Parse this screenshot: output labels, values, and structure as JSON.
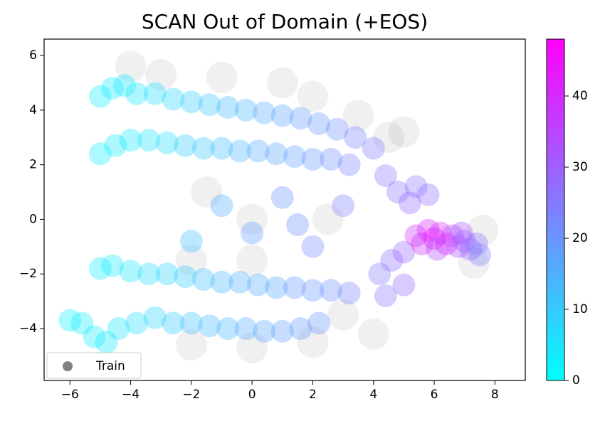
{
  "chart_data": {
    "type": "scatter",
    "title": "SCAN Out of Domain (+EOS)",
    "xlim": [
      -6.85,
      9
    ],
    "ylim": [
      -5.9,
      6.6
    ],
    "xticks": [
      {
        "value": -6,
        "label": "−6"
      },
      {
        "value": -4,
        "label": "−4"
      },
      {
        "value": -2,
        "label": "−2"
      },
      0,
      2,
      4,
      6,
      8
    ],
    "yticks": [
      {
        "value": -4,
        "label": "−4"
      },
      {
        "value": -2,
        "label": "−2"
      },
      0,
      2,
      4,
      6
    ],
    "legend": "lower left",
    "series": [
      {
        "name": "Train",
        "color": "#808080",
        "x": [
          -3,
          -1,
          1,
          2,
          3.5,
          4.5,
          0,
          -1.5,
          2.5,
          -2,
          0,
          3,
          0,
          -2,
          2,
          4,
          7.6,
          7.3,
          5,
          -4
        ],
        "y": [
          5.3,
          5.2,
          5,
          4.5,
          3.8,
          3,
          0,
          1,
          0,
          -1.5,
          -1.5,
          -3.5,
          -4.7,
          -4.6,
          -4.5,
          -4.2,
          -0.4,
          -1.6,
          3.2,
          5.6
        ]
      }
    ],
    "colored": {
      "colormap": "cool",
      "clim": [
        0,
        48
      ],
      "cticks": [
        0,
        10,
        20,
        30,
        40
      ],
      "x": [
        -5,
        -4.6,
        -4.2,
        -3.8,
        -3.2,
        -2.6,
        -2,
        -1.4,
        -0.8,
        -0.2,
        0.4,
        1,
        1.6,
        2.2,
        2.8,
        3.4,
        4,
        -5,
        -4.5,
        -4,
        -3.4,
        -2.8,
        -2.2,
        -1.6,
        -1,
        -0.4,
        0.2,
        0.8,
        1.4,
        2,
        2.6,
        3.2,
        4.4,
        4.8,
        5.2,
        5.4,
        5.8,
        -5,
        -4.6,
        -4,
        -3.4,
        -2.8,
        -2.2,
        -1.6,
        -1,
        -0.4,
        0.2,
        0.8,
        1.4,
        2,
        2.6,
        3.2,
        4.2,
        4.6,
        5,
        4.4,
        5,
        -6,
        -5.6,
        -5.2,
        -4.8,
        -4.4,
        -3.8,
        -3.2,
        -2.6,
        -2,
        -1.4,
        -0.8,
        -0.2,
        0.4,
        1,
        1.6,
        2.2,
        5.4,
        5.8,
        6,
        6.2,
        6.4,
        6.6,
        6.8,
        7,
        7.2,
        7.4,
        5.6,
        6.1,
        6.9,
        7.5,
        -1,
        0,
        1,
        2,
        -2,
        1.5,
        3
      ],
      "y": [
        4.5,
        4.8,
        4.9,
        4.6,
        4.6,
        4.4,
        4.3,
        4.2,
        4.1,
        4.0,
        3.9,
        3.8,
        3.7,
        3.5,
        3.3,
        3.0,
        2.6,
        2.4,
        2.7,
        2.9,
        2.9,
        2.8,
        2.7,
        2.6,
        2.6,
        2.5,
        2.5,
        2.4,
        2.3,
        2.2,
        2.2,
        2.0,
        1.6,
        1.0,
        0.6,
        1.2,
        0.9,
        -1.8,
        -1.7,
        -1.9,
        -2.0,
        -2.0,
        -2.1,
        -2.2,
        -2.3,
        -2.3,
        -2.4,
        -2.5,
        -2.5,
        -2.6,
        -2.6,
        -2.7,
        -2.0,
        -1.5,
        -1.2,
        -2.8,
        -2.4,
        -3.7,
        -3.8,
        -4.3,
        -4.5,
        -4.0,
        -3.8,
        -3.6,
        -3.8,
        -3.8,
        -3.9,
        -4.0,
        -4.0,
        -4.1,
        -4.1,
        -4.0,
        -3.8,
        -0.6,
        -0.4,
        -0.7,
        -0.5,
        -0.9,
        -0.6,
        -1.0,
        -0.8,
        -1.1,
        -0.9,
        -0.9,
        -1.1,
        -0.5,
        -1.3,
        0.5,
        -0.5,
        0.8,
        -1,
        -0.8,
        -0.2,
        0.5
      ],
      "c": [
        3,
        3,
        4,
        5,
        6,
        8,
        10,
        11,
        13,
        14,
        16,
        17,
        18,
        19,
        21,
        23,
        25,
        3,
        4,
        4,
        5,
        7,
        9,
        11,
        12,
        14,
        16,
        17,
        18,
        19,
        21,
        23,
        26,
        27,
        28,
        26,
        27,
        3,
        4,
        5,
        7,
        8,
        10,
        12,
        13,
        15,
        16,
        17,
        19,
        20,
        21,
        23,
        25,
        27,
        29,
        26,
        28,
        2,
        3,
        3,
        4,
        5,
        6,
        8,
        10,
        12,
        13,
        14,
        16,
        17,
        18,
        19,
        20,
        38,
        42,
        45,
        40,
        44,
        36,
        33,
        30,
        28,
        26,
        40,
        34,
        32,
        24,
        15,
        18,
        20,
        22,
        12,
        21,
        24
      ]
    }
  }
}
